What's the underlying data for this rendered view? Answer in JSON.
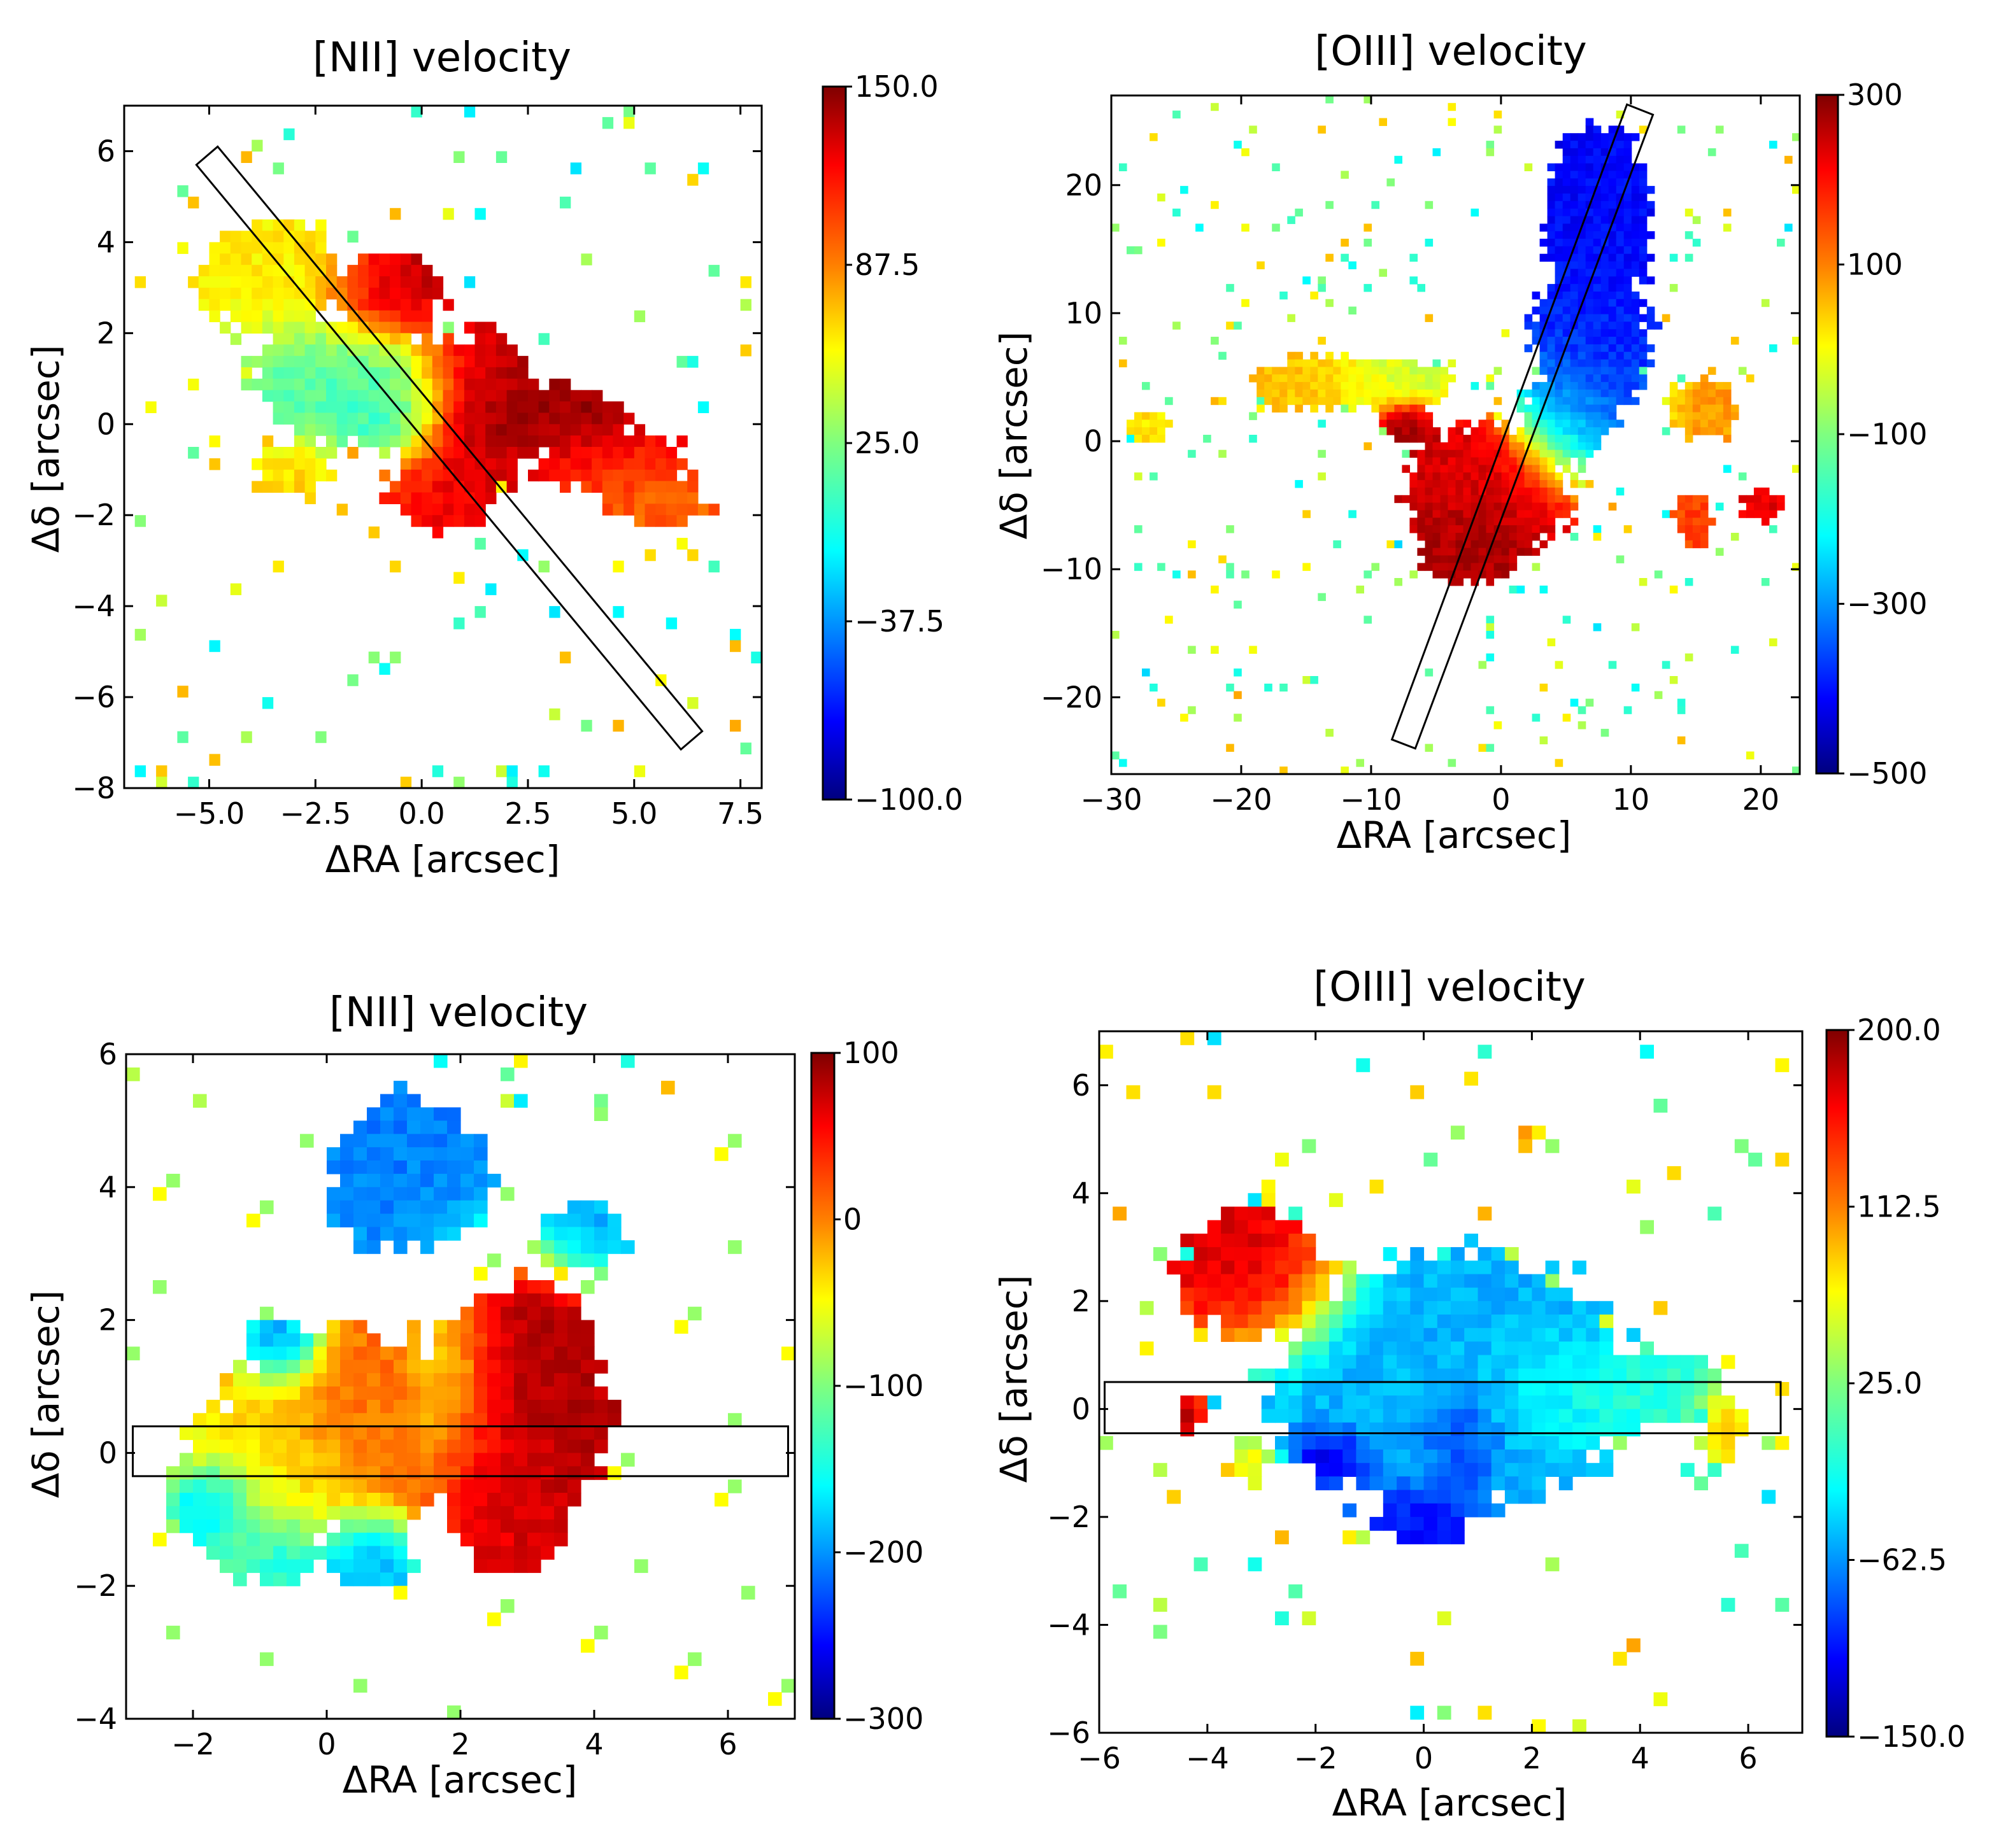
{
  "figure": {
    "panels": [
      "nii_top",
      "oiii_top",
      "nii_bottom",
      "oiii_bottom"
    ]
  },
  "colormap": {
    "name": "jet",
    "stops": [
      "#00007f",
      "#0000ff",
      "#007fff",
      "#00ffff",
      "#7fff7f",
      "#ffff00",
      "#ff7f00",
      "#ff0000",
      "#7f0000"
    ]
  },
  "chart_data": [
    {
      "id": "nii_top",
      "type": "heatmap",
      "title": "[NII] velocity",
      "xlabel": "ΔRA [arcsec]",
      "ylabel": "Δδ [arcsec]",
      "xlim": [
        -7,
        8
      ],
      "ylim": [
        -8,
        7
      ],
      "xticks": [
        -5.0,
        -2.5,
        0.0,
        2.5,
        5.0,
        7.5
      ],
      "xtick_labels": [
        "−5.0",
        "−2.5",
        "0.0",
        "2.5",
        "5.0",
        "7.5"
      ],
      "yticks": [
        6,
        4,
        2,
        0,
        -2,
        -4,
        -6,
        -8
      ],
      "ytick_labels": [
        "6",
        "4",
        "2",
        "0",
        "−2",
        "−4",
        "−6",
        "−8"
      ],
      "colorbar": {
        "vmin": -100.0,
        "vmax": 150.0,
        "ticks": [
          150.0,
          87.5,
          25.0,
          -37.5,
          -100.0
        ],
        "tick_labels": [
          "150.0",
          "87.5",
          "25.0",
          "−37.5",
          "−100.0"
        ]
      },
      "slit": [
        [
          -4.8,
          6.1
        ],
        [
          6.6,
          -6.75
        ],
        [
          6.1,
          -7.15
        ],
        [
          -5.3,
          5.7
        ]
      ],
      "blobs": [
        {
          "x": -3.5,
          "y": 3.2,
          "sx": 1.2,
          "sy": 0.9,
          "v": 60,
          "a": 0.9
        },
        {
          "x": -1.8,
          "y": 1.0,
          "sx": 1.4,
          "sy": 1.0,
          "v": 15,
          "a": 1.0
        },
        {
          "x": -0.5,
          "y": 0.2,
          "sx": 0.7,
          "sy": 0.6,
          "v": -10,
          "a": 0.9
        },
        {
          "x": -0.8,
          "y": 2.8,
          "sx": 0.9,
          "sy": 0.6,
          "v": 140,
          "a": 1.0
        },
        {
          "x": 1.2,
          "y": 0.2,
          "sx": 1.0,
          "sy": 1.2,
          "v": 140,
          "a": 1.1
        },
        {
          "x": 0.5,
          "y": -1.4,
          "sx": 0.9,
          "sy": 0.6,
          "v": 115,
          "a": 0.9
        },
        {
          "x": 3.2,
          "y": 0.1,
          "sx": 1.2,
          "sy": 0.5,
          "v": 145,
          "a": 1.0
        },
        {
          "x": 4.5,
          "y": -0.8,
          "sx": 1.3,
          "sy": 0.5,
          "v": 110,
          "a": 0.8
        },
        {
          "x": 5.5,
          "y": -1.7,
          "sx": 1.0,
          "sy": 0.4,
          "v": 95,
          "a": 0.7
        },
        {
          "x": -3.0,
          "y": -1.0,
          "sx": 0.8,
          "sy": 0.5,
          "v": 70,
          "a": 0.6
        }
      ]
    },
    {
      "id": "oiii_top",
      "type": "heatmap",
      "title": "[OIII] velocity",
      "xlabel": "ΔRA [arcsec]",
      "ylabel": "Δδ [arcsec]",
      "xlim": [
        -30,
        23
      ],
      "ylim": [
        -26,
        27
      ],
      "xticks": [
        -30,
        -20,
        -10,
        0,
        10,
        20
      ],
      "xtick_labels": [
        "−30",
        "−20",
        "−10",
        "0",
        "10",
        "20"
      ],
      "yticks": [
        20,
        10,
        0,
        -10,
        -20
      ],
      "ytick_labels": [
        "20",
        "10",
        "0",
        "−10",
        "−20"
      ],
      "colorbar": {
        "vmin": -500,
        "vmax": 300,
        "ticks": [
          300,
          100,
          -100,
          -300,
          -500
        ],
        "tick_labels": [
          "300",
          "100",
          "−100",
          "−300",
          "−500"
        ]
      },
      "slit": [
        [
          9.7,
          26.3
        ],
        [
          11.7,
          25.5
        ],
        [
          -6.6,
          -24.0
        ],
        [
          -8.4,
          -23.3
        ]
      ],
      "blobs": [
        {
          "x": 7.5,
          "y": 17.0,
          "sx": 2.8,
          "sy": 5.0,
          "v": -400,
          "a": 1.0
        },
        {
          "x": 7.0,
          "y": 8.0,
          "sx": 3.0,
          "sy": 4.5,
          "v": -370,
          "a": 1.0
        },
        {
          "x": 5.0,
          "y": 2.0,
          "sx": 2.5,
          "sy": 3.0,
          "v": -250,
          "a": 0.8
        },
        {
          "x": -1.0,
          "y": -4.0,
          "sx": 4.0,
          "sy": 3.5,
          "v": 230,
          "a": 1.1
        },
        {
          "x": -2.5,
          "y": -8.0,
          "sx": 2.8,
          "sy": 2.0,
          "v": 280,
          "a": 0.9
        },
        {
          "x": -14.0,
          "y": 4.5,
          "sx": 3.5,
          "sy": 1.5,
          "v": 50,
          "a": 0.9
        },
        {
          "x": -8.0,
          "y": 4.5,
          "sx": 3.0,
          "sy": 1.5,
          "v": -60,
          "a": 0.8
        },
        {
          "x": -7.3,
          "y": 1.3,
          "sx": 1.3,
          "sy": 1.1,
          "v": 290,
          "a": 1.0
        },
        {
          "x": 15.5,
          "y": 2.5,
          "sx": 2.0,
          "sy": 1.8,
          "v": 80,
          "a": 0.8
        },
        {
          "x": 15.0,
          "y": -6.0,
          "sx": 1.2,
          "sy": 1.5,
          "v": 150,
          "a": 0.7
        },
        {
          "x": 20.0,
          "y": -5.0,
          "sx": 1.3,
          "sy": 1.0,
          "v": 220,
          "a": 0.7
        },
        {
          "x": -27.0,
          "y": 1.0,
          "sx": 1.2,
          "sy": 1.0,
          "v": 20,
          "a": 0.8
        }
      ]
    },
    {
      "id": "nii_bottom",
      "type": "heatmap",
      "title": "[NII] velocity",
      "xlabel": "ΔRA [arcsec]",
      "ylabel": "Δδ [arcsec]",
      "xlim": [
        -3,
        7
      ],
      "ylim": [
        -4,
        6
      ],
      "xticks": [
        -2,
        0,
        2,
        4,
        6
      ],
      "xtick_labels": [
        "−2",
        "0",
        "2",
        "4",
        "6"
      ],
      "yticks": [
        6,
        4,
        2,
        0,
        -2,
        -4
      ],
      "ytick_labels": [
        "6",
        "4",
        "2",
        "0",
        "−2",
        "−4"
      ],
      "colorbar": {
        "vmin": -300,
        "vmax": 100,
        "ticks": [
          100,
          0,
          -100,
          -200,
          -300
        ],
        "tick_labels": [
          "100",
          "0",
          "−100",
          "−200",
          "−300"
        ]
      },
      "slit": [
        [
          -2.9,
          0.4
        ],
        [
          6.9,
          0.4
        ],
        [
          6.9,
          -0.35
        ],
        [
          -2.9,
          -0.35
        ]
      ],
      "blobs": [
        {
          "x": 0.3,
          "y": 0.3,
          "sx": 1.3,
          "sy": 1.0,
          "v": 10,
          "a": 1.1
        },
        {
          "x": -1.0,
          "y": -0.5,
          "sx": 0.9,
          "sy": 0.9,
          "v": -90,
          "a": 0.9
        },
        {
          "x": -1.7,
          "y": -0.8,
          "sx": 0.35,
          "sy": 0.35,
          "v": -230,
          "a": 0.9
        },
        {
          "x": -0.7,
          "y": 1.6,
          "sx": 0.35,
          "sy": 0.35,
          "v": -250,
          "a": 0.9
        },
        {
          "x": 0.6,
          "y": -1.5,
          "sx": 0.5,
          "sy": 0.4,
          "v": -220,
          "a": 0.9
        },
        {
          "x": -0.8,
          "y": -1.5,
          "sx": 0.5,
          "sy": 0.4,
          "v": -170,
          "a": 0.8
        },
        {
          "x": 1.2,
          "y": 4.2,
          "sx": 0.8,
          "sy": 0.8,
          "v": -200,
          "a": 1.0
        },
        {
          "x": 3.0,
          "y": 0.7,
          "sx": 0.8,
          "sy": 1.2,
          "v": 80,
          "a": 1.1
        },
        {
          "x": 2.7,
          "y": -0.9,
          "sx": 0.6,
          "sy": 0.6,
          "v": 60,
          "a": 0.9
        },
        {
          "x": 3.8,
          "y": 3.3,
          "sx": 0.5,
          "sy": 0.4,
          "v": -190,
          "a": 0.8
        },
        {
          "x": 1.8,
          "y": 1.0,
          "sx": 0.4,
          "sy": 0.8,
          "v": -100,
          "a": 0.6
        }
      ]
    },
    {
      "id": "oiii_bottom",
      "type": "heatmap",
      "title": "[OIII] velocity",
      "xlabel": "ΔRA [arcsec]",
      "ylabel": "Δδ [arcsec]",
      "xlim": [
        -6,
        7
      ],
      "ylim": [
        -6,
        7
      ],
      "xticks": [
        -6,
        -4,
        -2,
        0,
        2,
        4,
        6
      ],
      "xtick_labels": [
        "−6",
        "−4",
        "−2",
        "0",
        "2",
        "4",
        "6"
      ],
      "yticks": [
        6,
        4,
        2,
        0,
        -2,
        -4,
        -6
      ],
      "ytick_labels": [
        "6",
        "4",
        "2",
        "0",
        "−2",
        "−4",
        "−6"
      ],
      "colorbar": {
        "vmin": -150.0,
        "vmax": 200.0,
        "ticks": [
          200.0,
          112.5,
          25.0,
          -62.5,
          -150.0
        ],
        "tick_labels": [
          "200.0",
          "112.5",
          "25.0",
          "−62.5",
          "−150.0"
        ]
      },
      "slit": [
        [
          -5.9,
          0.5
        ],
        [
          6.6,
          0.5
        ],
        [
          6.6,
          -0.45
        ],
        [
          -5.9,
          -0.45
        ]
      ],
      "blobs": [
        {
          "x": -3.1,
          "y": 2.5,
          "sx": 0.9,
          "sy": 0.8,
          "v": 180,
          "a": 1.1
        },
        {
          "x": 0.5,
          "y": 0.5,
          "sx": 2.2,
          "sy": 1.5,
          "v": -45,
          "a": 1.1
        },
        {
          "x": 0.7,
          "y": -0.5,
          "sx": 0.4,
          "sy": 0.5,
          "v": -120,
          "a": 0.8
        },
        {
          "x": -1.7,
          "y": -0.9,
          "sx": 0.4,
          "sy": 0.3,
          "v": -140,
          "a": 0.8
        },
        {
          "x": 3.5,
          "y": 0.3,
          "sx": 1.5,
          "sy": 0.6,
          "v": 10,
          "a": 0.8
        },
        {
          "x": 5.5,
          "y": -0.3,
          "sx": 0.3,
          "sy": 0.4,
          "v": 110,
          "a": 0.8
        },
        {
          "x": 0.0,
          "y": -2.0,
          "sx": 0.7,
          "sy": 0.4,
          "v": -120,
          "a": 0.7
        },
        {
          "x": -4.3,
          "y": -0.1,
          "sx": 0.15,
          "sy": 0.3,
          "v": 200,
          "a": 0.9
        },
        {
          "x": -3.2,
          "y": -1.0,
          "sx": 0.3,
          "sy": 0.3,
          "v": 90,
          "a": 0.7
        }
      ]
    }
  ]
}
